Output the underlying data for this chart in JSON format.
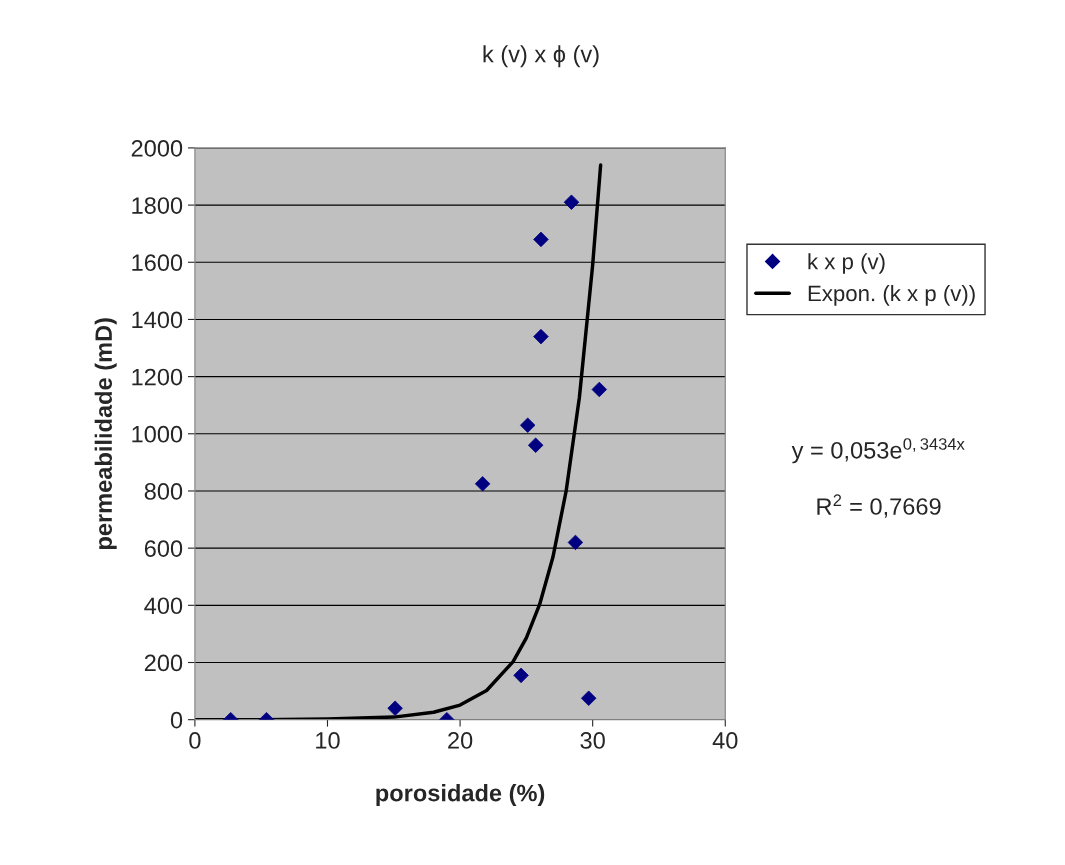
{
  "chart_data": {
    "type": "scatter",
    "title": "k (v) x ϕ (v)",
    "xlabel": "porosidade (%)",
    "ylabel": "permeabilidade (mD)",
    "series": [
      {
        "name": "k x p (v)",
        "color": "#000080",
        "marker": "diamond",
        "x": [
          2.7,
          5.4,
          15.1,
          19.0,
          21.7,
          25.1,
          25.7,
          26.1,
          26.1,
          28.4,
          30.5,
          28.7,
          24.6,
          29.7
        ],
        "values": [
          0,
          0,
          40,
          0,
          825,
          1030,
          960,
          1340,
          1680,
          1810,
          1155,
          620,
          155,
          75
        ]
      },
      {
        "name": "Expon. (k x p (v))",
        "type": "line",
        "color": "#000000",
        "marker": "none",
        "line_style": "solid",
        "x": [
          0,
          5,
          10,
          15,
          18,
          20,
          22,
          24,
          25,
          26,
          27,
          28,
          29,
          30,
          30.6
        ],
        "values": [
          0,
          0,
          2,
          9,
          26,
          51,
          102,
          203,
          286,
          403,
          568,
          800,
          1128,
          1591,
          1940
        ]
      }
    ],
    "xlim": [
      0,
      40
    ],
    "xticks": [
      0,
      10,
      20,
      30,
      40
    ],
    "ylim": [
      0,
      2000
    ],
    "yticks": [
      0,
      200,
      400,
      600,
      800,
      1000,
      1200,
      1400,
      1600,
      1800,
      2000
    ],
    "grid": "y",
    "legend": "right",
    "annotations": [
      "y = 0,053e$^{0,3434x}$",
      "R$^{2}$ = 0,7669"
    ]
  }
}
